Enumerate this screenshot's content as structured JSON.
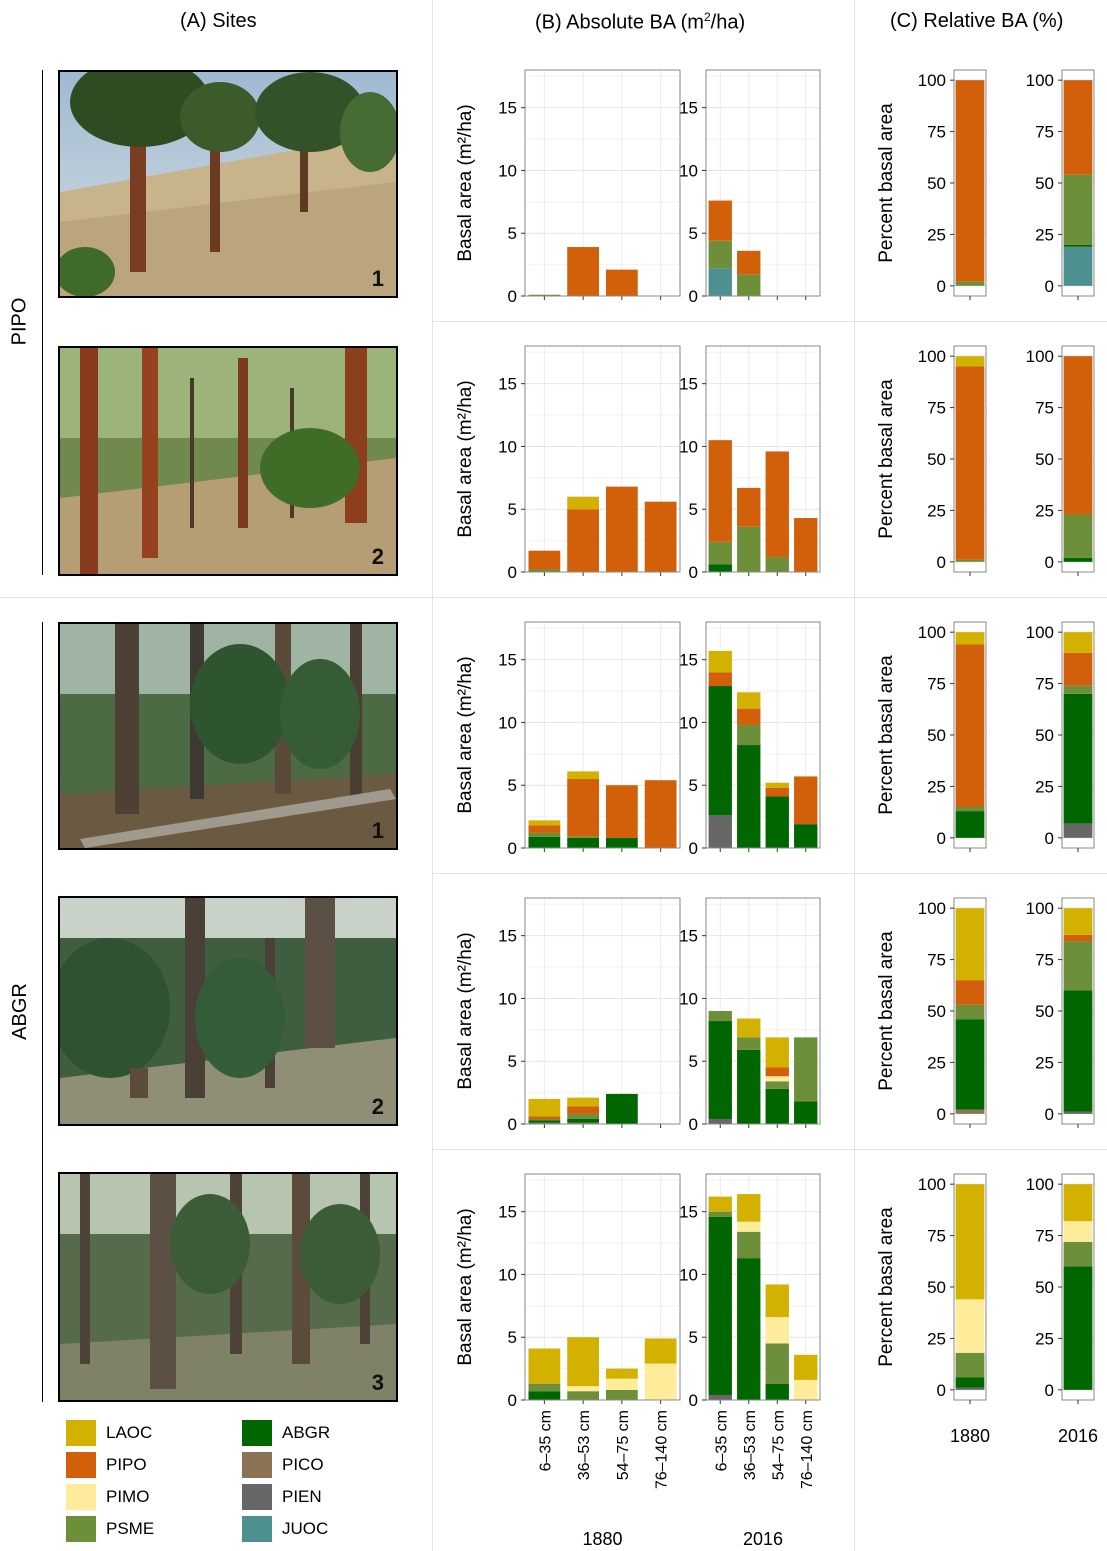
{
  "headers": {
    "a": "(A) Sites",
    "b_prefix": "(B)  Absolute BA (m",
    "b_sup": "2",
    "b_suffix": "/ha)",
    "c": "(C)  Relative BA (%)"
  },
  "groups": [
    {
      "label": "PIPO"
    },
    {
      "label": "ABGR"
    }
  ],
  "photos": [
    {
      "number": "1",
      "scene": "open ponderosa pine slope"
    },
    {
      "number": "2",
      "scene": "ponderosa pine stand"
    },
    {
      "number": "1",
      "scene": "grand fir forest with fallen log"
    },
    {
      "number": "2",
      "scene": "dense grand fir understory"
    },
    {
      "number": "3",
      "scene": "mixed conifer forest"
    }
  ],
  "legend": [
    {
      "code": "LAOC",
      "color": "#d3b100"
    },
    {
      "code": "PIPO",
      "color": "#d2600b"
    },
    {
      "code": "PIMO",
      "color": "#ffec9b"
    },
    {
      "code": "PSME",
      "color": "#6e8f3a"
    },
    {
      "code": "ABGR",
      "color": "#006600"
    },
    {
      "code": "PICO",
      "color": "#8b7355"
    },
    {
      "code": "PIEN",
      "color": "#676767"
    },
    {
      "code": "JUOC",
      "color": "#4d9090"
    }
  ],
  "chart_data": {
    "absolute": {
      "type": "bar",
      "stacked": true,
      "ylabel": "Basal area (m²/ha)",
      "ylim": [
        0,
        18
      ],
      "yticks": [
        0,
        5,
        10,
        15
      ],
      "categories": [
        "6–35 cm",
        "36–53 cm",
        "54–75 cm",
        "76–140 cm"
      ],
      "years": [
        "1880",
        "2016"
      ],
      "species_order": [
        "JUOC",
        "PIEN",
        "PICO",
        "ABGR",
        "PSME",
        "PIMO",
        "PIPO",
        "LAOC"
      ],
      "panels": [
        {
          "site": "PIPO 1",
          "year": "1880",
          "values": {
            "PSME": [
              0.1,
              0,
              0,
              0
            ],
            "PIPO": [
              0,
              3.9,
              2.1,
              0
            ]
          }
        },
        {
          "site": "PIPO 1",
          "year": "2016",
          "values": {
            "JUOC": [
              2.2,
              0,
              0,
              0
            ],
            "PSME": [
              2.2,
              1.7,
              0,
              0
            ],
            "PIPO": [
              3.2,
              1.9,
              0,
              0
            ]
          }
        },
        {
          "site": "PIPO 2",
          "year": "1880",
          "values": {
            "PSME": [
              0.2,
              0,
              0,
              0
            ],
            "PIPO": [
              1.5,
              5.0,
              6.8,
              5.6
            ],
            "LAOC": [
              0,
              1.0,
              0,
              0
            ]
          }
        },
        {
          "site": "PIPO 2",
          "year": "2016",
          "values": {
            "ABGR": [
              0.6,
              0,
              0,
              0
            ],
            "PSME": [
              1.8,
              3.6,
              1.2,
              0
            ],
            "PIPO": [
              8.1,
              3.1,
              8.4,
              4.3
            ]
          }
        },
        {
          "site": "ABGR 1",
          "year": "1880",
          "values": {
            "ABGR": [
              0.9,
              0.8,
              0.8,
              0
            ],
            "PSME": [
              0.3,
              0.1,
              0,
              0
            ],
            "PIPO": [
              0.6,
              4.6,
              4.2,
              5.4
            ],
            "LAOC": [
              0.4,
              0.6,
              0,
              0
            ]
          }
        },
        {
          "site": "ABGR 1",
          "year": "2016",
          "values": {
            "PIEN": [
              2.6,
              0,
              0,
              0
            ],
            "ABGR": [
              10.3,
              8.2,
              4.1,
              1.9
            ],
            "PSME": [
              0,
              1.6,
              0,
              0
            ],
            "PIPO": [
              1.1,
              1.3,
              0.7,
              3.8
            ],
            "LAOC": [
              1.7,
              1.3,
              0.4,
              0
            ]
          }
        },
        {
          "site": "ABGR 2",
          "year": "1880",
          "values": {
            "PICO": [
              0.1,
              0.1,
              0,
              0
            ],
            "ABGR": [
              0.2,
              0.3,
              2.4,
              0
            ],
            "PSME": [
              0.1,
              0.4,
              0,
              0
            ],
            "PIPO": [
              0.2,
              0.6,
              0,
              0
            ],
            "LAOC": [
              1.4,
              0.7,
              0,
              0
            ]
          }
        },
        {
          "site": "ABGR 2",
          "year": "2016",
          "values": {
            "PIEN": [
              0.4,
              0,
              0,
              0
            ],
            "ABGR": [
              7.8,
              5.9,
              2.8,
              1.8
            ],
            "PSME": [
              0.8,
              1.0,
              0.6,
              5.1
            ],
            "PIMO": [
              0,
              0,
              0.4,
              0
            ],
            "PIPO": [
              0,
              0,
              0.7,
              0
            ],
            "LAOC": [
              0,
              1.5,
              2.4,
              0
            ]
          }
        },
        {
          "site": "ABGR 3",
          "year": "1880",
          "values": {
            "ABGR": [
              0.7,
              0,
              0,
              0
            ],
            "PSME": [
              0.6,
              0.7,
              0.8,
              0
            ],
            "PIMO": [
              0,
              0.4,
              0.9,
              2.9
            ],
            "LAOC": [
              2.8,
              3.9,
              0.8,
              2.0
            ]
          }
        },
        {
          "site": "ABGR 3",
          "year": "2016",
          "values": {
            "PIEN": [
              0.4,
              0,
              0,
              0
            ],
            "ABGR": [
              14.2,
              11.3,
              1.3,
              0
            ],
            "PSME": [
              0.4,
              2.1,
              3.2,
              0
            ],
            "PIMO": [
              0,
              0.8,
              2.1,
              1.6
            ],
            "LAOC": [
              1.2,
              2.2,
              2.6,
              2.0
            ]
          }
        }
      ]
    },
    "relative": {
      "type": "bar",
      "stacked": true,
      "ylabel": "Percent basal area",
      "ylim": [
        0,
        100
      ],
      "yticks": [
        0,
        25,
        50,
        75,
        100
      ],
      "categories": [
        "1880",
        "2016"
      ],
      "species_order": [
        "JUOC",
        "PIEN",
        "PICO",
        "ABGR",
        "PSME",
        "PIMO",
        "PIPO",
        "LAOC"
      ],
      "panels": [
        {
          "site": "PIPO 1",
          "year": "1880",
          "values": {
            "PSME": 2,
            "PIPO": 98
          }
        },
        {
          "site": "PIPO 1",
          "year": "2016",
          "values": {
            "JUOC": 19,
            "ABGR": 1,
            "PSME": 34,
            "PIPO": 46
          }
        },
        {
          "site": "PIPO 2",
          "year": "1880",
          "values": {
            "PSME": 1,
            "PIPO": 94,
            "LAOC": 5
          }
        },
        {
          "site": "PIPO 2",
          "year": "2016",
          "values": {
            "ABGR": 2,
            "PSME": 21,
            "PIPO": 77
          }
        },
        {
          "site": "ABGR 1",
          "year": "1880",
          "values": {
            "ABGR": 13,
            "PSME": 2,
            "PIPO": 79,
            "LAOC": 6
          }
        },
        {
          "site": "ABGR 1",
          "year": "2016",
          "values": {
            "PIEN": 7,
            "ABGR": 63,
            "PSME": 4,
            "PIPO": 16,
            "LAOC": 10
          }
        },
        {
          "site": "ABGR 2",
          "year": "1880",
          "values": {
            "PICO": 2,
            "ABGR": 44,
            "PSME": 7,
            "PIPO": 12,
            "LAOC": 35
          }
        },
        {
          "site": "ABGR 2",
          "year": "2016",
          "values": {
            "PIEN": 1,
            "ABGR": 59,
            "PSME": 24,
            "PIPO": 3,
            "LAOC": 13
          }
        },
        {
          "site": "ABGR 3",
          "year": "1880",
          "values": {
            "PIEN": 1,
            "ABGR": 5,
            "PSME": 12,
            "PIMO": 26,
            "LAOC": 56
          }
        },
        {
          "site": "ABGR 3",
          "year": "2016",
          "values": {
            "ABGR": 60,
            "PSME": 12,
            "PIMO": 10,
            "LAOC": 18
          }
        }
      ]
    }
  }
}
